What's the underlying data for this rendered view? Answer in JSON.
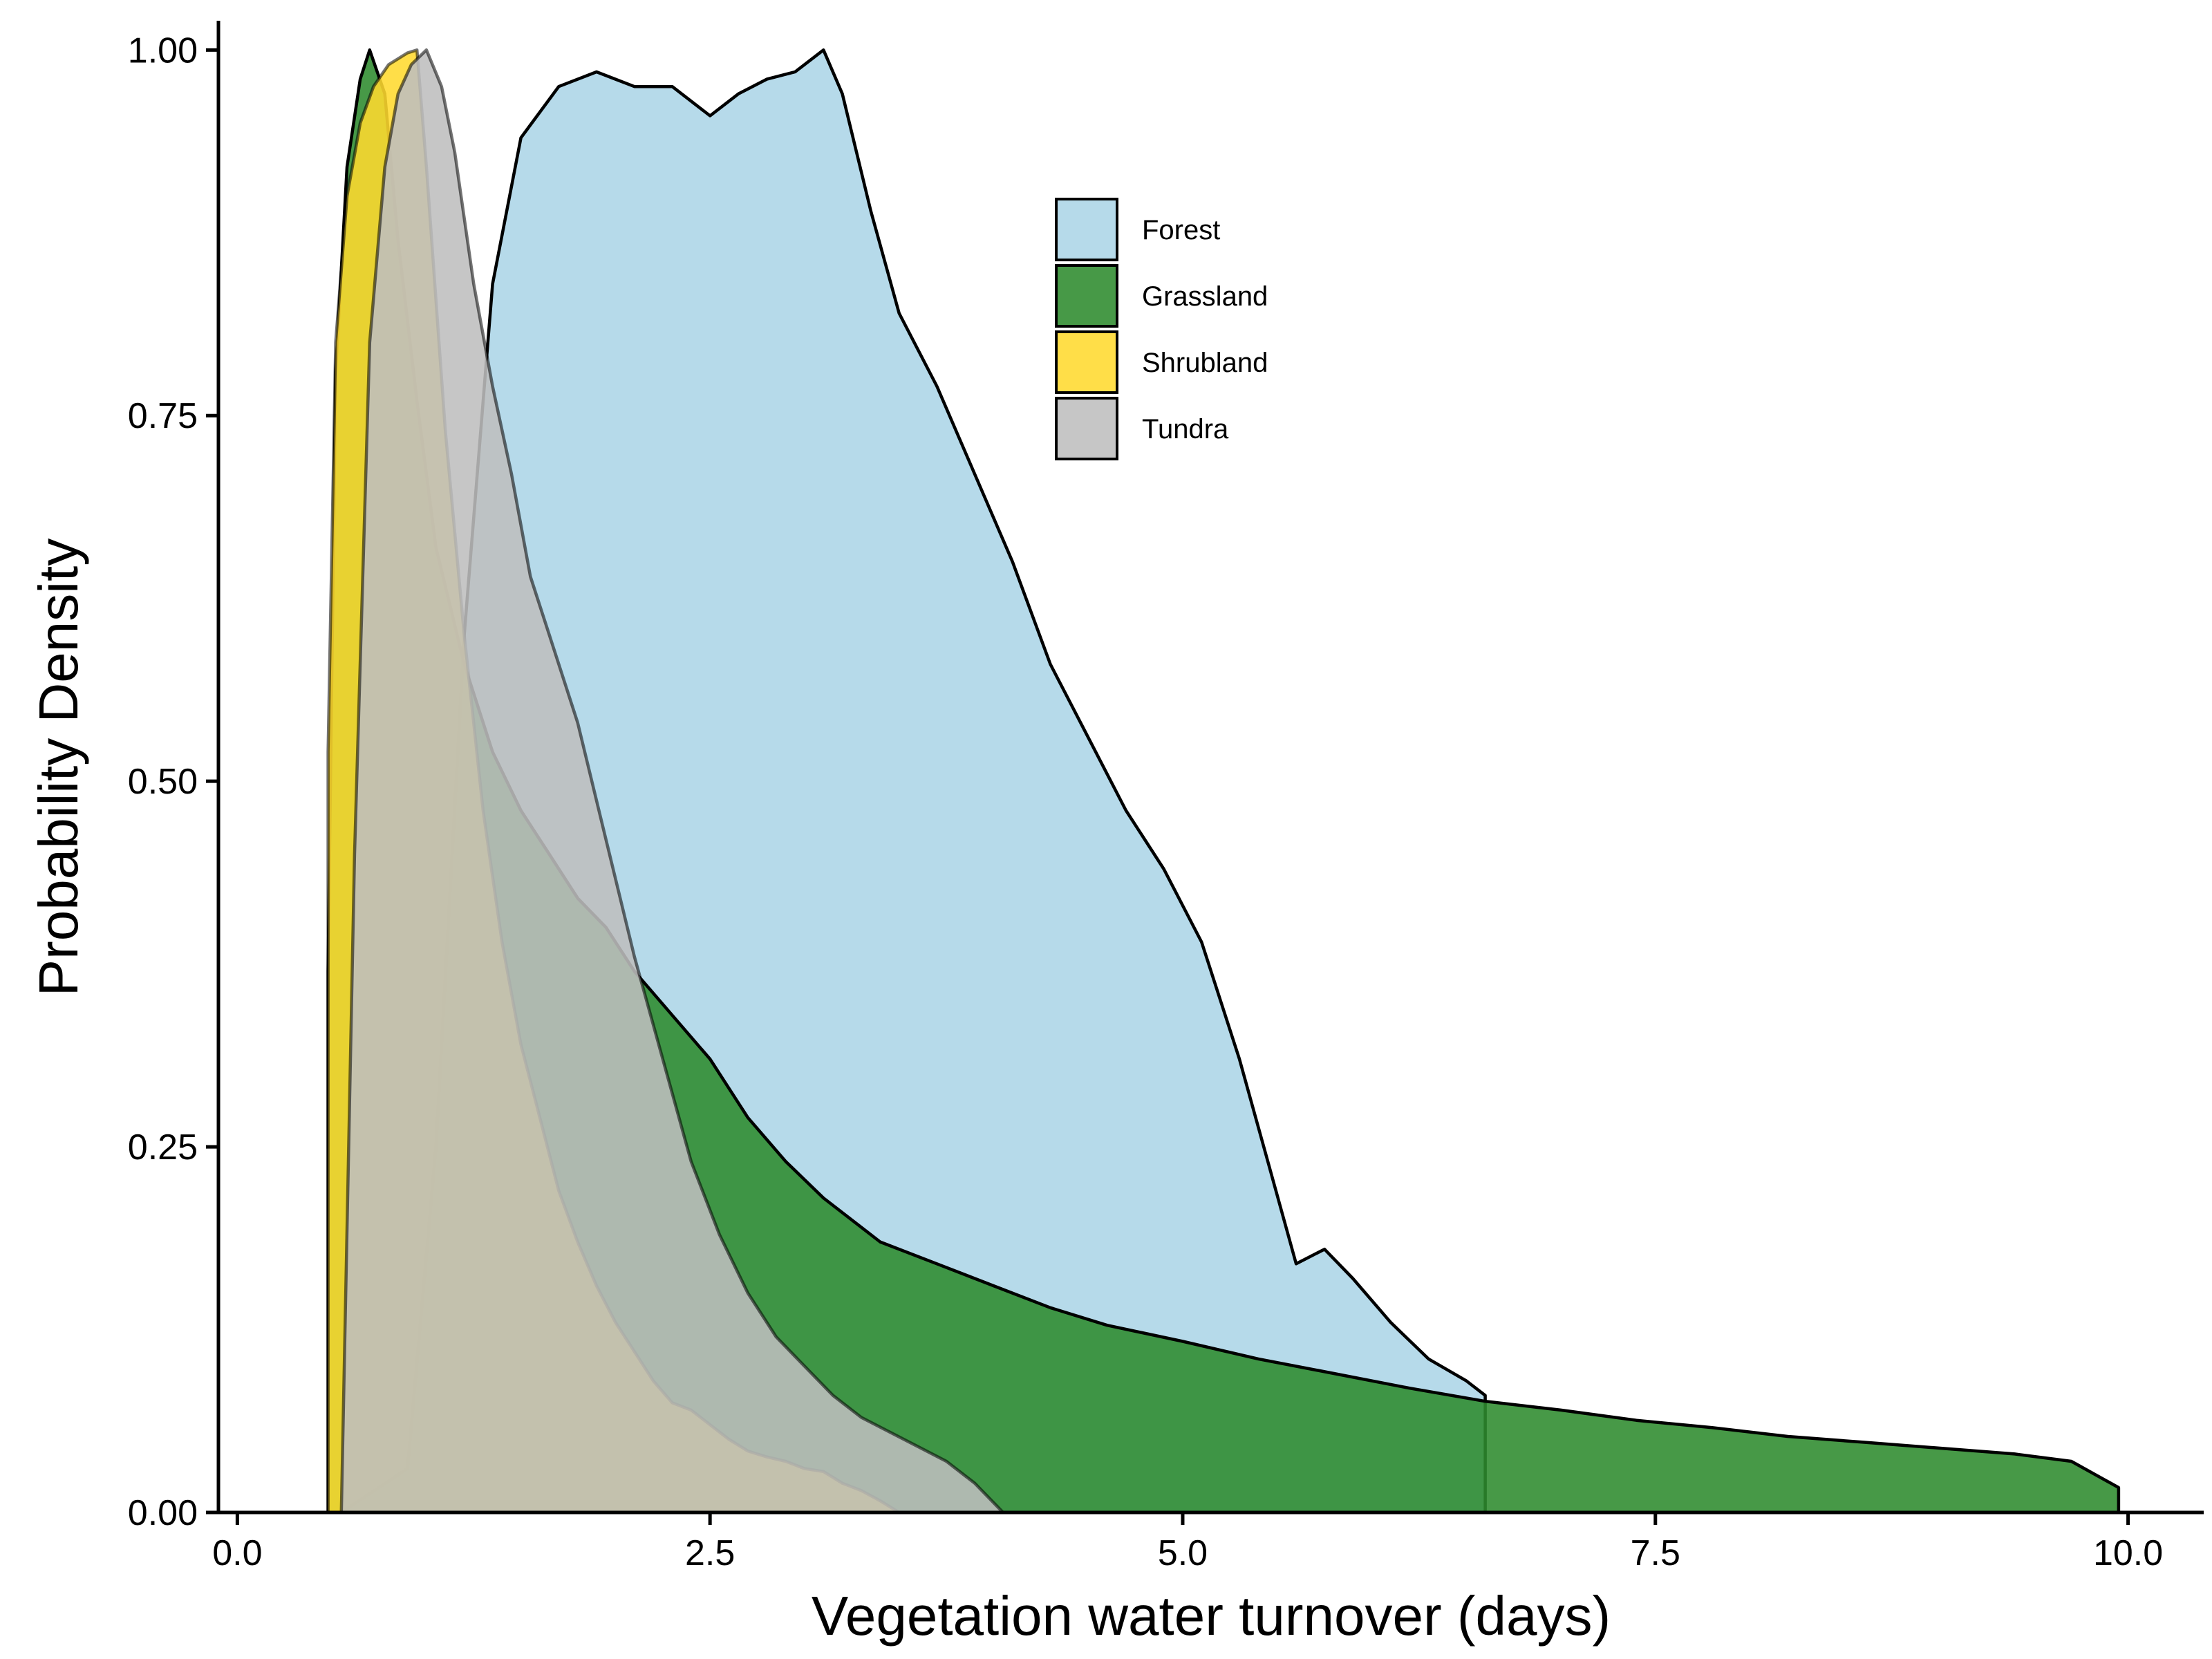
{
  "chart_data": {
    "type": "area",
    "xlabel": "Vegetation water turnover (days)",
    "ylabel": "Probability Density",
    "xlim": [
      -0.1,
      10.4
    ],
    "ylim": [
      0,
      1.02
    ],
    "x_ticks": [
      0,
      2.5,
      5,
      7.5,
      10
    ],
    "x_tick_labels": [
      "0.0",
      "2.5",
      "5.0",
      "7.5",
      "10.0"
    ],
    "y_ticks": [
      0,
      0.25,
      0.5,
      0.75,
      1.0
    ],
    "y_tick_labels": [
      "0.00",
      "0.25",
      "0.50",
      "0.75",
      "1.00"
    ],
    "grid": false,
    "legend_position": "top-center",
    "series": [
      {
        "name": "Forest",
        "color": "#A9D4E6",
        "x": [
          0.55,
          0.9,
          1.05,
          1.2,
          1.35,
          1.5,
          1.7,
          1.9,
          2.1,
          2.3,
          2.5,
          2.65,
          2.8,
          2.95,
          3.1,
          3.2,
          3.35,
          3.5,
          3.7,
          3.9,
          4.1,
          4.3,
          4.5,
          4.7,
          4.9,
          5.1,
          5.3,
          5.45,
          5.6,
          5.75,
          5.9,
          6.1,
          6.3,
          6.5,
          6.6
        ],
        "values": [
          0.0,
          0.03,
          0.25,
          0.6,
          0.84,
          0.94,
          0.975,
          0.985,
          0.975,
          0.975,
          0.955,
          0.97,
          0.98,
          0.985,
          1.0,
          0.97,
          0.89,
          0.82,
          0.77,
          0.71,
          0.65,
          0.58,
          0.53,
          0.48,
          0.44,
          0.39,
          0.31,
          0.24,
          0.17,
          0.18,
          0.16,
          0.13,
          0.105,
          0.09,
          0.08
        ]
      },
      {
        "name": "Grassland",
        "color": "#2E8B2E",
        "x": [
          0.48,
          0.52,
          0.58,
          0.65,
          0.7,
          0.78,
          0.85,
          0.95,
          1.05,
          1.2,
          1.35,
          1.5,
          1.65,
          1.8,
          1.95,
          2.1,
          2.3,
          2.5,
          2.7,
          2.9,
          3.1,
          3.4,
          3.7,
          4.0,
          4.3,
          4.6,
          5.0,
          5.4,
          5.8,
          6.2,
          6.6,
          7.0,
          7.4,
          7.8,
          8.2,
          8.6,
          9.0,
          9.4,
          9.7,
          9.95
        ],
        "values": [
          0.37,
          0.78,
          0.92,
          0.98,
          1.0,
          0.97,
          0.87,
          0.76,
          0.66,
          0.58,
          0.52,
          0.48,
          0.45,
          0.42,
          0.4,
          0.37,
          0.34,
          0.31,
          0.27,
          0.24,
          0.215,
          0.185,
          0.17,
          0.155,
          0.14,
          0.128,
          0.117,
          0.105,
          0.095,
          0.085,
          0.076,
          0.07,
          0.063,
          0.058,
          0.052,
          0.048,
          0.044,
          0.04,
          0.035,
          0.017
        ]
      },
      {
        "name": "Shrubland",
        "color": "#FFD92F",
        "x": [
          0.48,
          0.52,
          0.58,
          0.65,
          0.72,
          0.8,
          0.9,
          0.95,
          1.0,
          1.1,
          1.2,
          1.3,
          1.4,
          1.5,
          1.6,
          1.7,
          1.8,
          1.9,
          2.0,
          2.1,
          2.2,
          2.3,
          2.4,
          2.5,
          2.6,
          2.7,
          2.8,
          2.9,
          3.0,
          3.1,
          3.2,
          3.3,
          3.4,
          3.5
        ],
        "values": [
          0.52,
          0.8,
          0.9,
          0.95,
          0.975,
          0.99,
          0.998,
          1.0,
          0.92,
          0.74,
          0.6,
          0.48,
          0.39,
          0.32,
          0.27,
          0.22,
          0.185,
          0.155,
          0.13,
          0.11,
          0.09,
          0.075,
          0.07,
          0.06,
          0.05,
          0.042,
          0.038,
          0.035,
          0.03,
          0.028,
          0.02,
          0.015,
          0.008,
          0.0
        ]
      },
      {
        "name": "Tundra",
        "color": "#BEBEBE",
        "x": [
          0.55,
          0.62,
          0.7,
          0.78,
          0.85,
          0.92,
          1.0,
          1.08,
          1.15,
          1.25,
          1.35,
          1.45,
          1.55,
          1.65,
          1.8,
          1.95,
          2.1,
          2.25,
          2.4,
          2.55,
          2.7,
          2.85,
          3.0,
          3.15,
          3.3,
          3.45,
          3.6,
          3.75,
          3.9,
          4.05
        ],
        "values": [
          0.0,
          0.45,
          0.8,
          0.92,
          0.97,
          0.99,
          1.0,
          0.975,
          0.93,
          0.84,
          0.77,
          0.71,
          0.64,
          0.6,
          0.54,
          0.46,
          0.38,
          0.31,
          0.24,
          0.19,
          0.15,
          0.12,
          0.1,
          0.08,
          0.065,
          0.055,
          0.045,
          0.035,
          0.02,
          0.0
        ]
      }
    ]
  }
}
